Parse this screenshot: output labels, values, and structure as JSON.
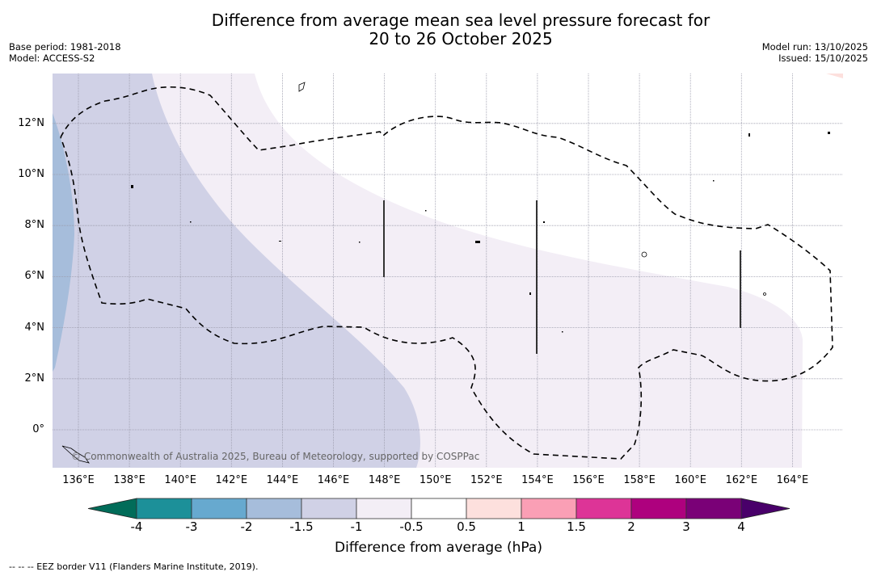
{
  "header": {
    "title_line1": "Difference from average mean sea level pressure forecast for",
    "title_line2": "20 to 26 October 2025",
    "base_period": "Base period: 1981-2018",
    "model": "Model: ACCESS-S2",
    "model_run": "Model run: 13/10/2025",
    "issued": "Issued: 15/10/2025"
  },
  "map": {
    "lon_range": [
      135,
      166
    ],
    "lat_range": [
      -1.5,
      14
    ],
    "lat_ticks": [
      {
        "value": 12,
        "label": "12°N"
      },
      {
        "value": 10,
        "label": "10°N"
      },
      {
        "value": 8,
        "label": "8°N"
      },
      {
        "value": 6,
        "label": "6°N"
      },
      {
        "value": 4,
        "label": "4°N"
      },
      {
        "value": 2,
        "label": "2°N"
      },
      {
        "value": 0,
        "label": "0°"
      }
    ],
    "lon_ticks": [
      {
        "value": 136,
        "label": "136°E"
      },
      {
        "value": 138,
        "label": "138°E"
      },
      {
        "value": 140,
        "label": "140°E"
      },
      {
        "value": 142,
        "label": "142°E"
      },
      {
        "value": 144,
        "label": "144°E"
      },
      {
        "value": 146,
        "label": "146°E"
      },
      {
        "value": 148,
        "label": "148°E"
      },
      {
        "value": 150,
        "label": "150°E"
      },
      {
        "value": 152,
        "label": "152°E"
      },
      {
        "value": 154,
        "label": "154°E"
      },
      {
        "value": 156,
        "label": "156°E"
      },
      {
        "value": 158,
        "label": "158°E"
      },
      {
        "value": 160,
        "label": "160°E"
      },
      {
        "value": 162,
        "label": "162°E"
      },
      {
        "value": 164,
        "label": "164°E"
      }
    ],
    "credit": "© Commonwealth of Australia 2025, Bureau of Meteorology, supported by COSPPac"
  },
  "colorbar": {
    "label": "Difference from average (hPa)",
    "ticks": [
      "-4",
      "-3",
      "-2",
      "-1.5",
      "-1",
      "-0.5",
      "0.5",
      "1",
      "1.5",
      "2",
      "3",
      "4"
    ],
    "under_color": "#016c59",
    "over_color": "#49006a",
    "colors": [
      "#1c9099",
      "#67a9cf",
      "#a6bddb",
      "#d0d1e6",
      "#f3eef6",
      "#ffffff",
      "#fde0dd",
      "#fa9fb5",
      "#dd3497",
      "#ae017e",
      "#7a0177"
    ]
  },
  "footnote": "--  --  -- EEZ border V11 (Flanders Marine Institute, 2019)."
}
